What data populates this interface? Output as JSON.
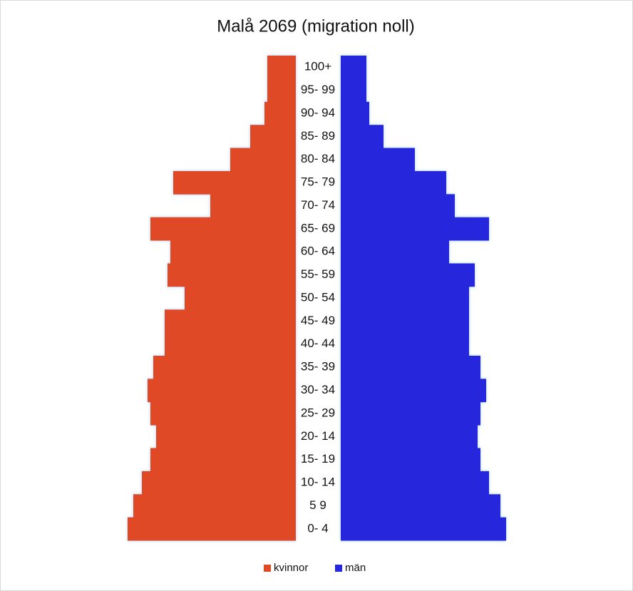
{
  "chart_data": {
    "type": "pyramid",
    "title": "Malå 2069 (migration noll)",
    "categories": [
      "0-  4",
      "5   9",
      "10- 14",
      "15- 19",
      "20- 14",
      "25- 29",
      "30- 34",
      "35- 39",
      "40- 44",
      "45- 49",
      "50- 54",
      "55- 59",
      "60- 64",
      "65- 69",
      "70- 74",
      "75- 79",
      "80- 84",
      "85- 89",
      "90- 94",
      "95- 99",
      "100+"
    ],
    "series": [
      {
        "name": "kvinnor",
        "color": "#e04a25",
        "values": [
          59,
          57,
          54,
          51,
          49,
          51,
          52,
          50,
          46,
          46,
          39,
          45,
          44,
          51,
          30,
          43,
          23,
          16,
          11,
          10,
          10
        ]
      },
      {
        "name": "män",
        "color": "#2626dd",
        "values": [
          58,
          56,
          52,
          49,
          48,
          49,
          51,
          49,
          45,
          45,
          45,
          47,
          38,
          52,
          40,
          37,
          26,
          15,
          10,
          9,
          9
        ]
      }
    ]
  }
}
